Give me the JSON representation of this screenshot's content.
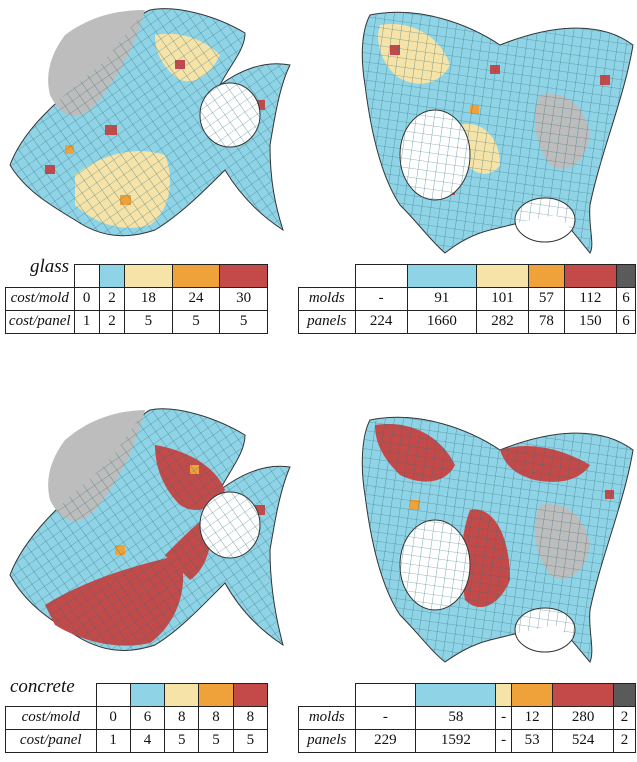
{
  "swatch_colors": [
    "#ffffff",
    "#8fd3e6",
    "#f6e3a8",
    "#f0a23a",
    "#c44a4a",
    "#5a5a5a"
  ],
  "glass": {
    "material": "glass",
    "cost_table": {
      "rows": [
        {
          "label": "cost/mold",
          "values": [
            "0",
            "2",
            "18",
            "24",
            "30"
          ]
        },
        {
          "label": "cost/panel",
          "values": [
            "1",
            "2",
            "5",
            "5",
            "5"
          ]
        }
      ]
    },
    "count_table": {
      "rows": [
        {
          "label": "molds",
          "values": [
            "-",
            "91",
            "101",
            "57",
            "112",
            "6"
          ]
        },
        {
          "label": "panels",
          "values": [
            "224",
            "1660",
            "282",
            "78",
            "150",
            "6"
          ]
        }
      ]
    }
  },
  "concrete": {
    "material": "concrete",
    "cost_table": {
      "rows": [
        {
          "label": "cost/mold",
          "values": [
            "0",
            "6",
            "8",
            "8",
            "8"
          ]
        },
        {
          "label": "cost/panel",
          "values": [
            "1",
            "4",
            "5",
            "5",
            "5"
          ]
        }
      ]
    },
    "count_table": {
      "rows": [
        {
          "label": "molds",
          "values": [
            "-",
            "58",
            "-",
            "12",
            "280",
            "2"
          ]
        },
        {
          "label": "panels",
          "values": [
            "229",
            "1592",
            "-",
            "53",
            "524",
            "2"
          ]
        }
      ]
    }
  }
}
